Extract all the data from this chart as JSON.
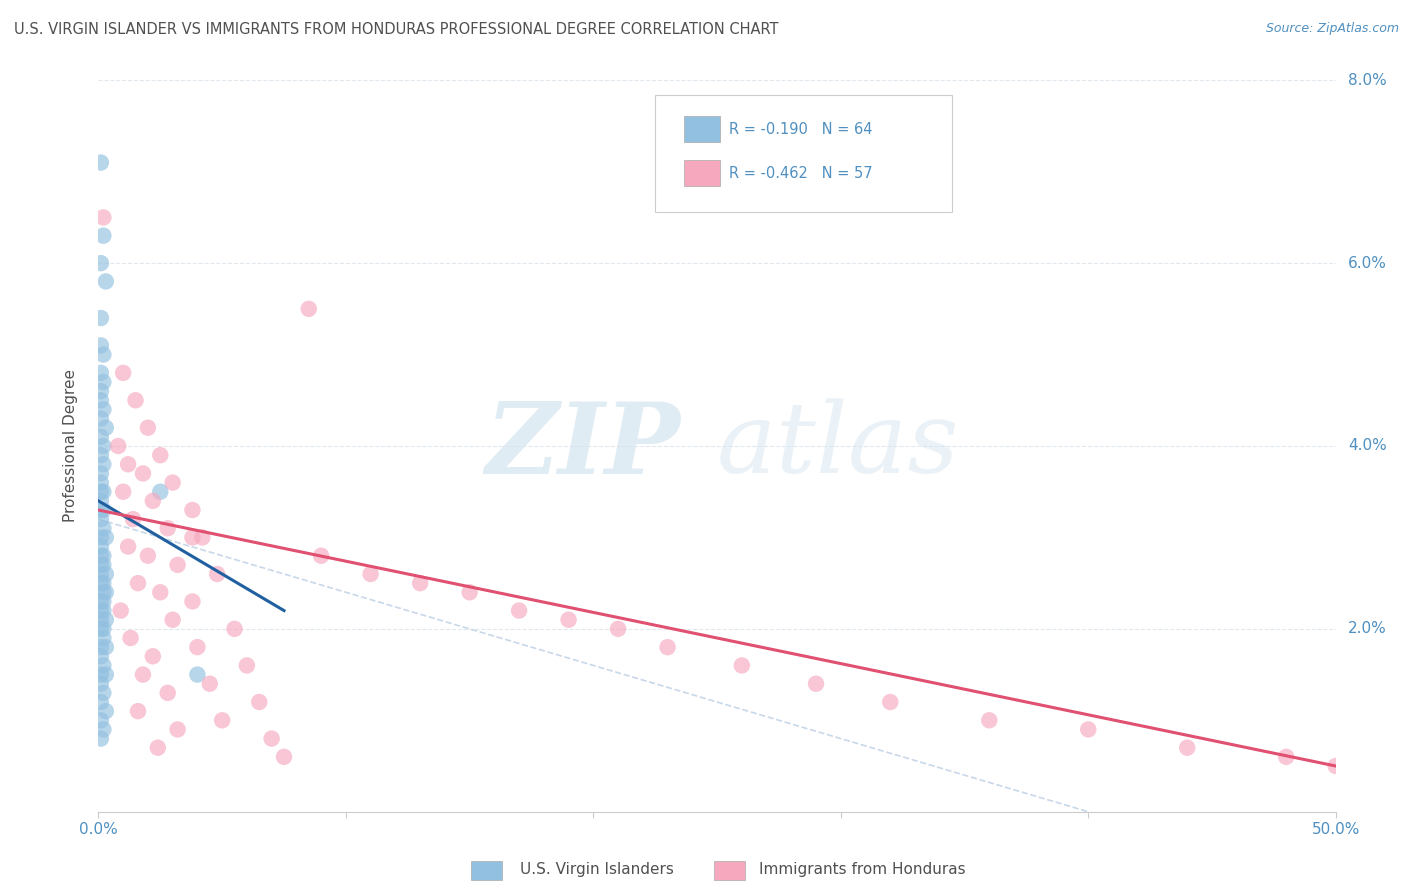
{
  "title": "U.S. VIRGIN ISLANDER VS IMMIGRANTS FROM HONDURAS PROFESSIONAL DEGREE CORRELATION CHART",
  "source": "Source: ZipAtlas.com",
  "ylabel": "Professional Degree",
  "ylabel_right_ticks": [
    0.0,
    0.02,
    0.04,
    0.06,
    0.08
  ],
  "ylabel_right_labels": [
    "",
    "2.0%",
    "4.0%",
    "6.0%",
    "8.0%"
  ],
  "xlim": [
    0.0,
    0.5
  ],
  "ylim": [
    0.0,
    0.08
  ],
  "watermark_zip": "ZIP",
  "watermark_atlas": "atlas",
  "legend_r1": "R = -0.190",
  "legend_n1": "N = 64",
  "legend_r2": "R = -0.462",
  "legend_n2": "N = 57",
  "blue_color": "#92C0E0",
  "pink_color": "#F5A8BE",
  "blue_line_color": "#2060A0",
  "pink_line_color": "#E05070",
  "ref_line_color": "#C8D8E8",
  "background_color": "#ffffff",
  "grid_color": "#E0E8F0",
  "title_color": "#505050",
  "source_color": "#5090C0",
  "tick_color": "#5090C0",
  "blue_scatter_x": [
    0.001,
    0.002,
    0.001,
    0.003,
    0.001,
    0.001,
    0.002,
    0.001,
    0.002,
    0.001,
    0.001,
    0.002,
    0.001,
    0.003,
    0.001,
    0.002,
    0.001,
    0.002,
    0.001,
    0.001,
    0.001,
    0.002,
    0.001,
    0.001,
    0.002,
    0.001,
    0.002,
    0.001,
    0.003,
    0.001,
    0.002,
    0.001,
    0.002,
    0.001,
    0.003,
    0.001,
    0.002,
    0.001,
    0.002,
    0.003,
    0.001,
    0.002,
    0.001,
    0.002,
    0.003,
    0.001,
    0.002,
    0.001,
    0.002,
    0.001,
    0.003,
    0.001,
    0.002,
    0.001,
    0.003,
    0.001,
    0.002,
    0.001,
    0.003,
    0.001,
    0.002,
    0.001,
    0.04,
    0.025
  ],
  "blue_scatter_y": [
    0.071,
    0.063,
    0.06,
    0.058,
    0.054,
    0.051,
    0.05,
    0.048,
    0.047,
    0.046,
    0.045,
    0.044,
    0.043,
    0.042,
    0.041,
    0.04,
    0.039,
    0.038,
    0.037,
    0.036,
    0.035,
    0.035,
    0.034,
    0.033,
    0.033,
    0.032,
    0.031,
    0.03,
    0.03,
    0.029,
    0.028,
    0.028,
    0.027,
    0.027,
    0.026,
    0.026,
    0.025,
    0.025,
    0.024,
    0.024,
    0.023,
    0.023,
    0.022,
    0.022,
    0.021,
    0.021,
    0.02,
    0.02,
    0.019,
    0.018,
    0.018,
    0.017,
    0.016,
    0.015,
    0.015,
    0.014,
    0.013,
    0.012,
    0.011,
    0.01,
    0.009,
    0.008,
    0.015,
    0.035
  ],
  "pink_scatter_x": [
    0.002,
    0.085,
    0.01,
    0.015,
    0.02,
    0.008,
    0.025,
    0.012,
    0.018,
    0.03,
    0.01,
    0.022,
    0.038,
    0.014,
    0.028,
    0.042,
    0.012,
    0.02,
    0.032,
    0.048,
    0.016,
    0.025,
    0.038,
    0.009,
    0.03,
    0.055,
    0.013,
    0.04,
    0.022,
    0.06,
    0.018,
    0.045,
    0.028,
    0.065,
    0.016,
    0.05,
    0.032,
    0.07,
    0.024,
    0.075,
    0.038,
    0.09,
    0.11,
    0.13,
    0.15,
    0.17,
    0.19,
    0.21,
    0.23,
    0.26,
    0.29,
    0.32,
    0.36,
    0.4,
    0.44,
    0.48,
    0.5
  ],
  "pink_scatter_y": [
    0.065,
    0.055,
    0.048,
    0.045,
    0.042,
    0.04,
    0.039,
    0.038,
    0.037,
    0.036,
    0.035,
    0.034,
    0.033,
    0.032,
    0.031,
    0.03,
    0.029,
    0.028,
    0.027,
    0.026,
    0.025,
    0.024,
    0.023,
    0.022,
    0.021,
    0.02,
    0.019,
    0.018,
    0.017,
    0.016,
    0.015,
    0.014,
    0.013,
    0.012,
    0.011,
    0.01,
    0.009,
    0.008,
    0.007,
    0.006,
    0.03,
    0.028,
    0.026,
    0.025,
    0.024,
    0.022,
    0.021,
    0.02,
    0.018,
    0.016,
    0.014,
    0.012,
    0.01,
    0.009,
    0.007,
    0.006,
    0.005
  ],
  "blue_line_x": [
    0.0,
    0.075
  ],
  "blue_line_y": [
    0.034,
    0.022
  ],
  "pink_line_x": [
    0.0,
    0.5
  ],
  "pink_line_y": [
    0.033,
    0.005
  ],
  "ref_line_x": [
    0.0,
    0.4
  ],
  "ref_line_y": [
    0.032,
    0.0
  ]
}
